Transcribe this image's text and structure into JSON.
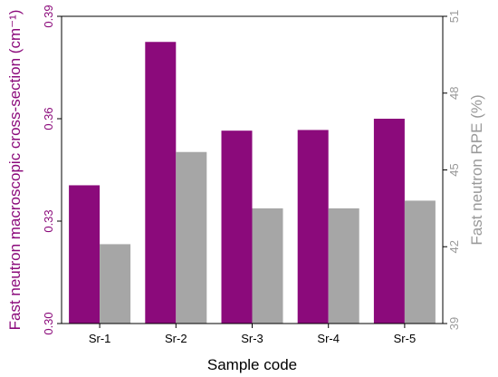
{
  "chart_data": {
    "type": "bar",
    "xlabel": "Sample code",
    "categories": [
      "Sr-1",
      "Sr-2",
      "Sr-3",
      "Sr-4",
      "Sr-5"
    ],
    "y_left": {
      "label": "Fast neutron macroscopic cross-section (cm⁻¹)",
      "range": [
        0.3,
        0.39
      ],
      "ticks": [
        0.3,
        0.33,
        0.36,
        0.39
      ],
      "tick_labels": [
        "0.30",
        "0.33",
        "0.36",
        "0.39"
      ],
      "color": "#8B0A7B"
    },
    "y_right": {
      "label": "Fast neutron RPE (%)",
      "range": [
        39,
        51
      ],
      "ticks": [
        39,
        42,
        45,
        48,
        51
      ],
      "tick_labels": [
        "39",
        "42",
        "45",
        "48",
        "51"
      ],
      "color": "#999999"
    },
    "series": [
      {
        "axis": "left",
        "color": "#8B0A7B",
        "values": [
          0.3405,
          0.3825,
          0.3565,
          0.3567,
          0.36
        ]
      },
      {
        "axis": "right",
        "color": "#A6A6A6",
        "values": [
          42.1,
          45.7,
          43.5,
          43.5,
          43.8
        ]
      }
    ],
    "grid": false,
    "legend": "none"
  }
}
